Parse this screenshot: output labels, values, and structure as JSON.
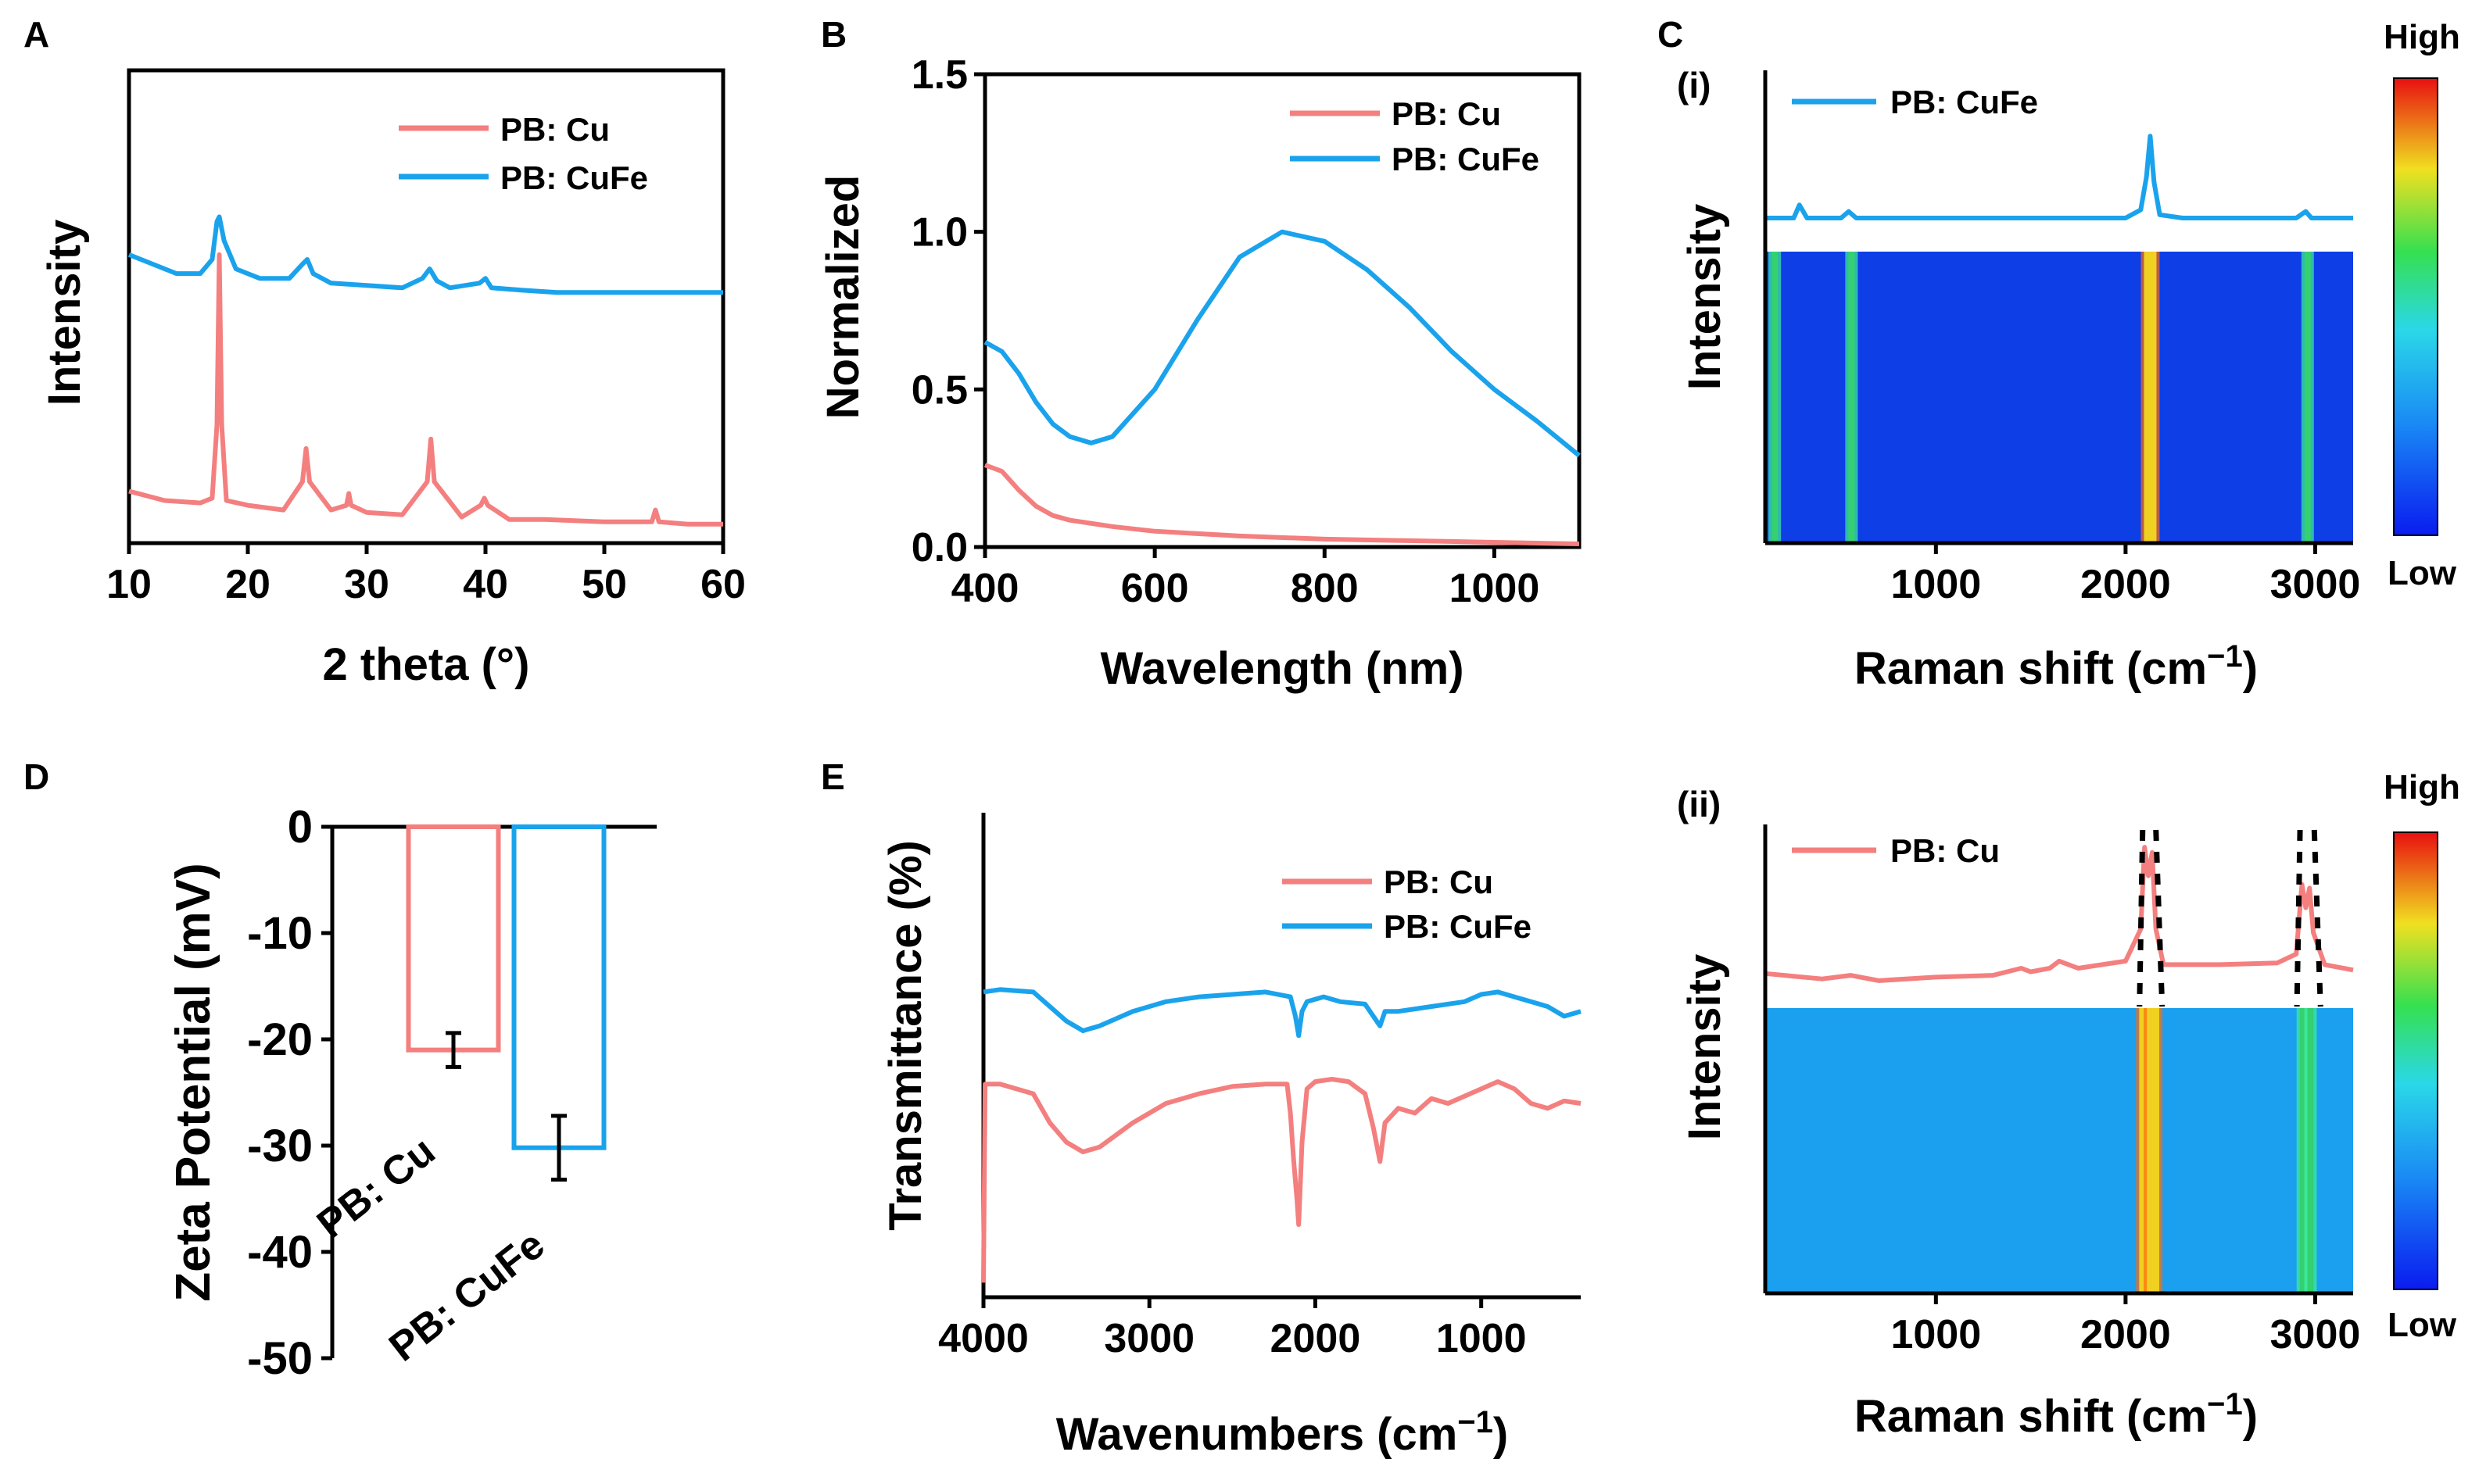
{
  "colors": {
    "cu": "#f47f7f",
    "cufe": "#1aa3ec",
    "axis": "#000000"
  },
  "panels": {
    "A": {
      "label": "A",
      "chart_data": {
        "type": "line",
        "title": "",
        "xlabel": "2 theta (°)",
        "ylabel": "Intensity",
        "xlim": [
          10,
          60
        ],
        "ylim": [
          0,
          10
        ],
        "xticks": [
          "10",
          "20",
          "30",
          "40",
          "50",
          "60"
        ],
        "series": [
          {
            "name": "PB: Cu",
            "x": [
              10,
              13,
              16,
              17,
              17.4,
              17.6,
              17.8,
              18.2,
              20,
              23,
              24.6,
              24.9,
              25.2,
              27,
              28.3,
              28.5,
              28.7,
              30,
              33,
              35.1,
              35.4,
              35.7,
              38,
              39.6,
              39.9,
              40.2,
              42,
              45,
              50,
              54,
              54.3,
              54.6,
              57,
              60
            ],
            "y": [
              1.1,
              0.9,
              0.85,
              0.95,
              2.5,
              6.1,
              2.5,
              0.9,
              0.8,
              0.7,
              1.3,
              2.0,
              1.3,
              0.7,
              0.8,
              1.05,
              0.8,
              0.65,
              0.6,
              1.3,
              2.2,
              1.3,
              0.55,
              0.8,
              0.95,
              0.8,
              0.5,
              0.5,
              0.45,
              0.45,
              0.7,
              0.45,
              0.4,
              0.4
            ]
          },
          {
            "name": "PB: CuFe",
            "x": [
              10,
              12,
              14,
              16,
              17,
              17.4,
              17.6,
              18,
              19,
              21,
              23.5,
              24.6,
              25,
              25.5,
              27,
              30,
              33,
              34.7,
              35.3,
              35.9,
              37,
              39.5,
              40,
              40.5,
              43,
              46,
              50,
              55,
              60
            ],
            "y": [
              6.1,
              5.9,
              5.7,
              5.7,
              6.0,
              6.8,
              6.9,
              6.4,
              5.8,
              5.6,
              5.6,
              5.9,
              6.0,
              5.7,
              5.5,
              5.45,
              5.4,
              5.6,
              5.8,
              5.55,
              5.4,
              5.5,
              5.6,
              5.4,
              5.35,
              5.3,
              5.3,
              5.3,
              5.3
            ]
          }
        ],
        "legend": [
          "PB: Cu",
          "PB: CuFe"
        ],
        "legend_position": "top-right"
      }
    },
    "B": {
      "label": "B",
      "chart_data": {
        "type": "line",
        "title": "",
        "xlabel": "Wavelength (nm)",
        "ylabel": "Normalized",
        "xlim": [
          400,
          1100
        ],
        "ylim": [
          0,
          1.5
        ],
        "xticks": [
          "400",
          "600",
          "800",
          "1000"
        ],
        "yticks": [
          "0.0",
          "0.5",
          "1.0",
          "1.5"
        ],
        "series": [
          {
            "name": "PB: Cu",
            "x": [
              400,
              420,
              440,
              460,
              480,
              500,
              550,
              600,
              700,
              800,
              900,
              1000,
              1100
            ],
            "y": [
              0.26,
              0.24,
              0.18,
              0.13,
              0.1,
              0.085,
              0.065,
              0.05,
              0.035,
              0.025,
              0.02,
              0.015,
              0.01
            ]
          },
          {
            "name": "PB: CuFe",
            "x": [
              400,
              420,
              440,
              460,
              480,
              500,
              525,
              550,
              600,
              650,
              700,
              750,
              800,
              850,
              900,
              950,
              1000,
              1050,
              1100
            ],
            "y": [
              0.65,
              0.62,
              0.55,
              0.46,
              0.39,
              0.35,
              0.33,
              0.35,
              0.5,
              0.72,
              0.92,
              1.0,
              0.97,
              0.88,
              0.76,
              0.62,
              0.5,
              0.4,
              0.29
            ]
          }
        ],
        "legend": [
          "PB: Cu",
          "PB: CuFe"
        ],
        "legend_position": "top-right"
      }
    },
    "C": {
      "label": "C",
      "sub_i": {
        "label": "(i)",
        "ylabel": "Intensity",
        "xlabel": "Raman shift (cm",
        "xlabel_sup": "−1",
        "xlabel_end": ")",
        "legend": "PB: CuFe",
        "colorbar_high": "High",
        "colorbar_low": "Low",
        "chart_data": {
          "type": "heatmap",
          "xlim": [
            100,
            3200
          ],
          "xticks": [
            "1000",
            "2000",
            "3000"
          ],
          "series": [
            {
              "name": "PB: CuFe",
              "x": [
                100,
                250,
                280,
                320,
                500,
                540,
                580,
                900,
                1500,
                2000,
                2080,
                2110,
                2130,
                2150,
                2180,
                2300,
                2900,
                2950,
                2980,
                3200
              ],
              "y": [
                1.0,
                1.0,
                1.8,
                1.0,
                1.0,
                1.4,
                1.0,
                1.0,
                1.0,
                1.0,
                1.5,
                3.5,
                6.0,
                3.2,
                1.2,
                1.0,
                1.0,
                1.4,
                1.0,
                1.0
              ]
            }
          ],
          "bands": [
            {
              "center": 2130,
              "level": "high"
            },
            {
              "center": 555,
              "level": "mid"
            },
            {
              "center": 2960,
              "level": "mid"
            },
            {
              "center": 150,
              "level": "mid"
            }
          ]
        }
      },
      "sub_ii": {
        "label": "(ii)",
        "ylabel": "Intensity",
        "xlabel": "Raman shift (cm",
        "xlabel_sup": "−1",
        "xlabel_end": ")",
        "legend": "PB: Cu",
        "colorbar_high": "High",
        "colorbar_low": "Low",
        "chart_data": {
          "type": "heatmap",
          "xlim": [
            100,
            3200
          ],
          "xticks": [
            "1000",
            "2000",
            "3000"
          ],
          "series": [
            {
              "name": "PB: Cu",
              "x": [
                100,
                400,
                550,
                700,
                1000,
                1300,
                1450,
                1500,
                1600,
                1650,
                1750,
                2000,
                2080,
                2100,
                2120,
                2140,
                2160,
                2200,
                2500,
                2800,
                2900,
                2930,
                2950,
                2970,
                2990,
                3050,
                3200
              ],
              "y": [
                1.5,
                1.2,
                1.4,
                1.1,
                1.3,
                1.4,
                1.8,
                1.6,
                1.8,
                2.2,
                1.8,
                2.2,
                4.0,
                8.6,
                7.0,
                8.3,
                4.0,
                2.0,
                2.0,
                2.1,
                2.6,
                6.5,
                5.2,
                6.3,
                3.8,
                2.0,
                1.7
              ]
            }
          ],
          "bands": [
            {
              "center": 2105,
              "level": "high"
            },
            {
              "center": 2145,
              "level": "high"
            },
            {
              "center": 2935,
              "level": "mid"
            },
            {
              "center": 2975,
              "level": "mid"
            }
          ]
        }
      }
    },
    "D": {
      "label": "D",
      "chart_data": {
        "type": "bar",
        "title": "",
        "ylabel": "Zeta Potential (mV)",
        "ylim": [
          -50,
          0
        ],
        "yticks": [
          "0",
          "-10",
          "-20",
          "-30",
          "-40",
          "-50"
        ],
        "categories": [
          "PB: Cu",
          "PB: CuFe"
        ],
        "values": [
          -21,
          -30.2
        ],
        "errors": [
          1.6,
          3.0
        ]
      }
    },
    "E": {
      "label": "E",
      "chart_data": {
        "type": "line",
        "title": "",
        "xlabel": "Wavenumbers (cm",
        "xlabel_sup": "−1",
        "xlabel_end": ")",
        "ylabel": "Transmittance (%)",
        "xlim": [
          4000,
          400
        ],
        "ylim": [
          0,
          10
        ],
        "xticks": [
          "4000",
          "3000",
          "2000",
          "1000"
        ],
        "series": [
          {
            "name": "PB: Cu",
            "x": [
              4000,
              3990,
              3900,
              3700,
              3600,
              3500,
              3400,
              3300,
              3100,
              2900,
              2700,
              2500,
              2300,
              2170,
              2150,
              2130,
              2110,
              2100,
              2080,
              2050,
              2000,
              1900,
              1800,
              1700,
              1650,
              1610,
              1580,
              1500,
              1400,
              1300,
              1200,
              1000,
              900,
              800,
              700,
              600,
              500,
              400
            ],
            "y": [
              0.3,
              4.4,
              4.4,
              4.2,
              3.6,
              3.2,
              3.0,
              3.1,
              3.6,
              4.0,
              4.2,
              4.35,
              4.4,
              4.4,
              3.8,
              2.8,
              2.0,
              1.5,
              3.2,
              4.3,
              4.45,
              4.5,
              4.45,
              4.2,
              3.5,
              2.8,
              3.6,
              3.9,
              3.8,
              4.1,
              4.0,
              4.3,
              4.45,
              4.3,
              4.0,
              3.9,
              4.05,
              4.0
            ]
          },
          {
            "name": "PB: CuFe",
            "x": [
              4000,
              3900,
              3700,
              3600,
              3500,
              3400,
              3300,
              3100,
              2900,
              2700,
              2500,
              2300,
              2150,
              2120,
              2100,
              2080,
              2050,
              1950,
              1850,
              1700,
              1650,
              1610,
              1580,
              1500,
              1400,
              1300,
              1100,
              1000,
              900,
              800,
              700,
              600,
              500,
              400
            ],
            "y": [
              6.3,
              6.35,
              6.3,
              6.0,
              5.7,
              5.5,
              5.6,
              5.9,
              6.1,
              6.2,
              6.25,
              6.3,
              6.2,
              5.8,
              5.4,
              5.9,
              6.1,
              6.2,
              6.1,
              6.05,
              5.8,
              5.6,
              5.9,
              5.9,
              5.95,
              6.0,
              6.1,
              6.25,
              6.3,
              6.2,
              6.1,
              6.0,
              5.8,
              5.9
            ]
          }
        ],
        "legend": [
          "PB: Cu",
          "PB: CuFe"
        ],
        "legend_position": "top-right"
      }
    }
  },
  "shared": {
    "panelA_ylabel": "Intensity"
  }
}
